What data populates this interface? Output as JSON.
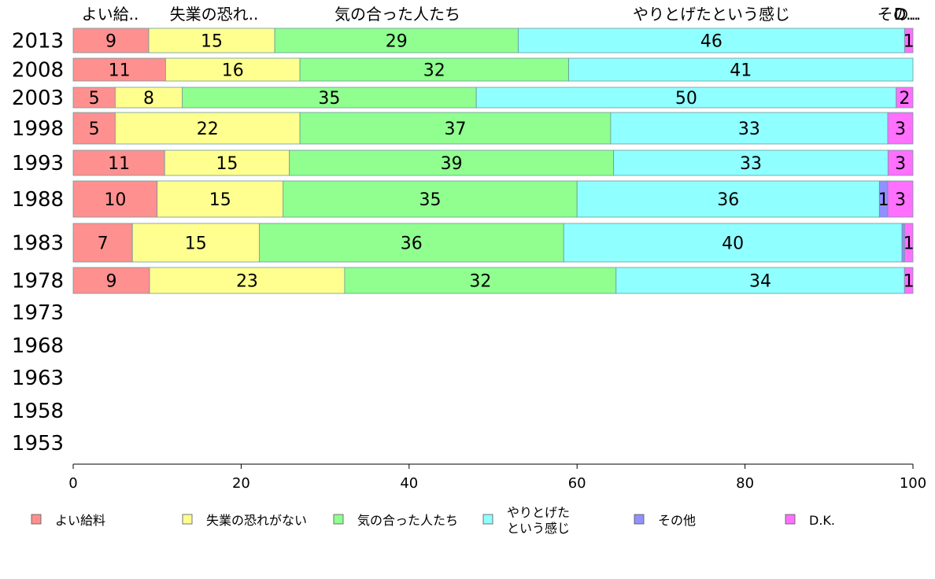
{
  "chart_data": {
    "type": "bar",
    "orientation": "horizontal",
    "stacked": "percent",
    "categories": [
      "2013",
      "2008",
      "2003",
      "1998",
      "1993",
      "1988",
      "1983",
      "1978",
      "1973",
      "1968",
      "1963",
      "1958",
      "1953"
    ],
    "column_labels": [
      "よい給..",
      "失業の恐れ..",
      "気の合った人たち",
      "やりとげたという感じ",
      "その..",
      "D..."
    ],
    "series": [
      {
        "name": "よい給料",
        "color": "#ff9090",
        "values": [
          9,
          11,
          5,
          5,
          11,
          10,
          7,
          9,
          null,
          null,
          null,
          null,
          null
        ]
      },
      {
        "name": "失業の恐れがない",
        "color": "#ffff90",
        "values": [
          15,
          16,
          8,
          22,
          15,
          15,
          15,
          23,
          null,
          null,
          null,
          null,
          null
        ]
      },
      {
        "name": "気の合った人たち",
        "color": "#90ff90",
        "values": [
          29,
          32,
          35,
          37,
          39,
          35,
          36,
          32,
          null,
          null,
          null,
          null,
          null
        ]
      },
      {
        "name": "やりとげたという感じ",
        "name_lines": [
          "やりとげた",
          "という感じ"
        ],
        "color": "#90ffff",
        "values": [
          46,
          41,
          50,
          33,
          33,
          36,
          40,
          34,
          null,
          null,
          null,
          null,
          null
        ]
      },
      {
        "name": "その他",
        "color": "#9090ff",
        "values": [
          0,
          0,
          0,
          0,
          0,
          1,
          0.3,
          0,
          null,
          null,
          null,
          null,
          null
        ]
      },
      {
        "name": "D.K.",
        "color": "#ff70ff",
        "values": [
          1,
          0,
          2,
          3,
          3,
          3,
          1,
          1,
          null,
          null,
          null,
          null,
          null
        ]
      }
    ],
    "xlim": [
      0,
      100
    ],
    "xticks": [
      0,
      20,
      40,
      60,
      80,
      100
    ],
    "xlabel": "",
    "ylabel": "",
    "grid": false,
    "legend_position": "bottom"
  }
}
